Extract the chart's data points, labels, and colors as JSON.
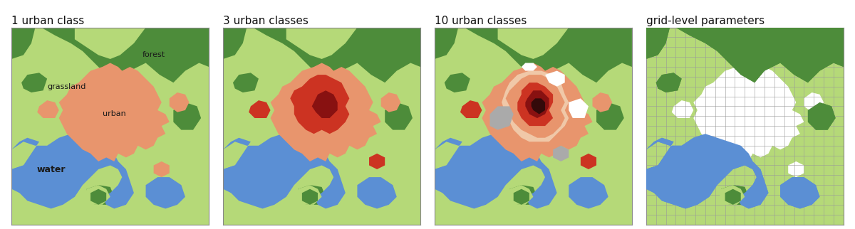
{
  "titles": [
    "1 urban class",
    "3 urban classes",
    "10 urban classes",
    "grid-level parameters"
  ],
  "title_fontsize": 11,
  "colors": {
    "grassland": "#b5d978",
    "forest": "#4d8c3a",
    "urban_light": "#e8956d",
    "urban_medium": "#cc3322",
    "urban_dark": "#881111",
    "urban_darkest": "#330a0a",
    "water": "#5b8fd4",
    "grey": "#aaaaaa",
    "peach": "#f0c8a8",
    "white": "#ffffff",
    "bg": "#ffffff"
  },
  "labels": {
    "forest": "forest",
    "grassland": "grassland",
    "urban": "urban",
    "water": "water"
  }
}
